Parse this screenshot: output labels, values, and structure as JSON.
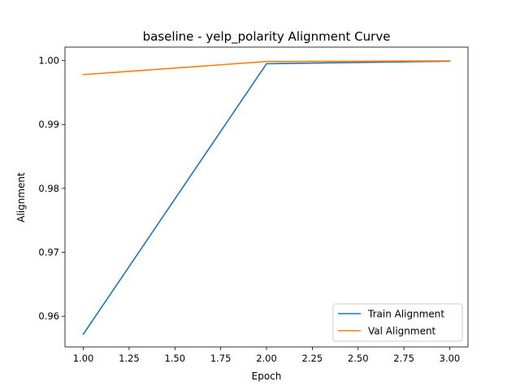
{
  "chart_data": {
    "type": "line",
    "title": "baseline - yelp_polarity Alignment Curve",
    "xlabel": "Epoch",
    "ylabel": "Alignment",
    "x": [
      1.0,
      2.0,
      3.0
    ],
    "series": [
      {
        "name": "Train Alignment",
        "color": "#1f77b4",
        "values": [
          0.9572,
          0.9995,
          0.9999
        ]
      },
      {
        "name": "Val Alignment",
        "color": "#ff7f0e",
        "values": [
          0.9978,
          0.99985,
          0.99995
        ]
      }
    ],
    "xlim": [
      0.9,
      3.1
    ],
    "ylim": [
      0.9552,
      1.0021
    ],
    "xticks": [
      1.0,
      1.25,
      1.5,
      1.75,
      2.0,
      2.25,
      2.5,
      2.75,
      3.0
    ],
    "xtick_labels": [
      "1.00",
      "1.25",
      "1.50",
      "1.75",
      "2.00",
      "2.25",
      "2.50",
      "2.75",
      "3.00"
    ],
    "yticks": [
      0.96,
      0.97,
      0.98,
      0.99,
      1.0
    ],
    "ytick_labels": [
      "0.96",
      "0.97",
      "0.98",
      "0.99",
      "1.00"
    ],
    "grid": false,
    "legend_position": "lower-right"
  }
}
